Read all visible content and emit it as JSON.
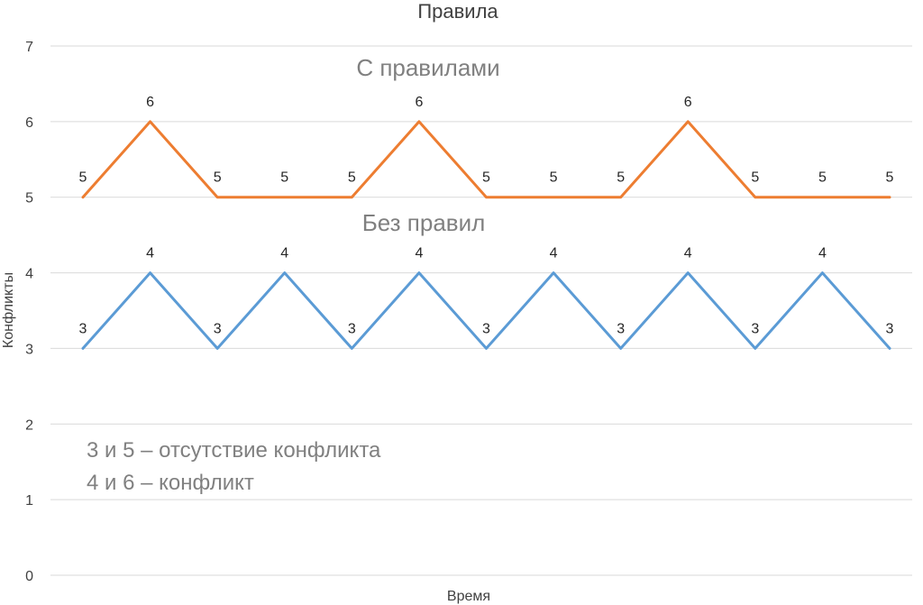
{
  "chart_data": {
    "type": "line",
    "title": "Правила",
    "xlabel": "Время",
    "ylabel": "Конфликты",
    "ylim": [
      0,
      7
    ],
    "yticks": [
      0,
      1,
      2,
      3,
      4,
      5,
      6,
      7
    ],
    "grid": true,
    "x": [
      1,
      2,
      3,
      4,
      5,
      6,
      7,
      8,
      9,
      10,
      11,
      12,
      13
    ],
    "series": [
      {
        "color": "#ED7D31",
        "values": [
          5,
          6,
          5,
          5,
          5,
          6,
          5,
          5,
          5,
          6,
          5,
          5,
          5
        ]
      },
      {
        "color": "#5B9BD5",
        "values": [
          3,
          4,
          3,
          4,
          3,
          4,
          3,
          4,
          3,
          4,
          3,
          4,
          3
        ]
      }
    ],
    "annotations": [
      "С правилами",
      "Без правил",
      "3 и 5 – отсутствие конфликта",
      "4 и 6 – конфликт"
    ]
  }
}
